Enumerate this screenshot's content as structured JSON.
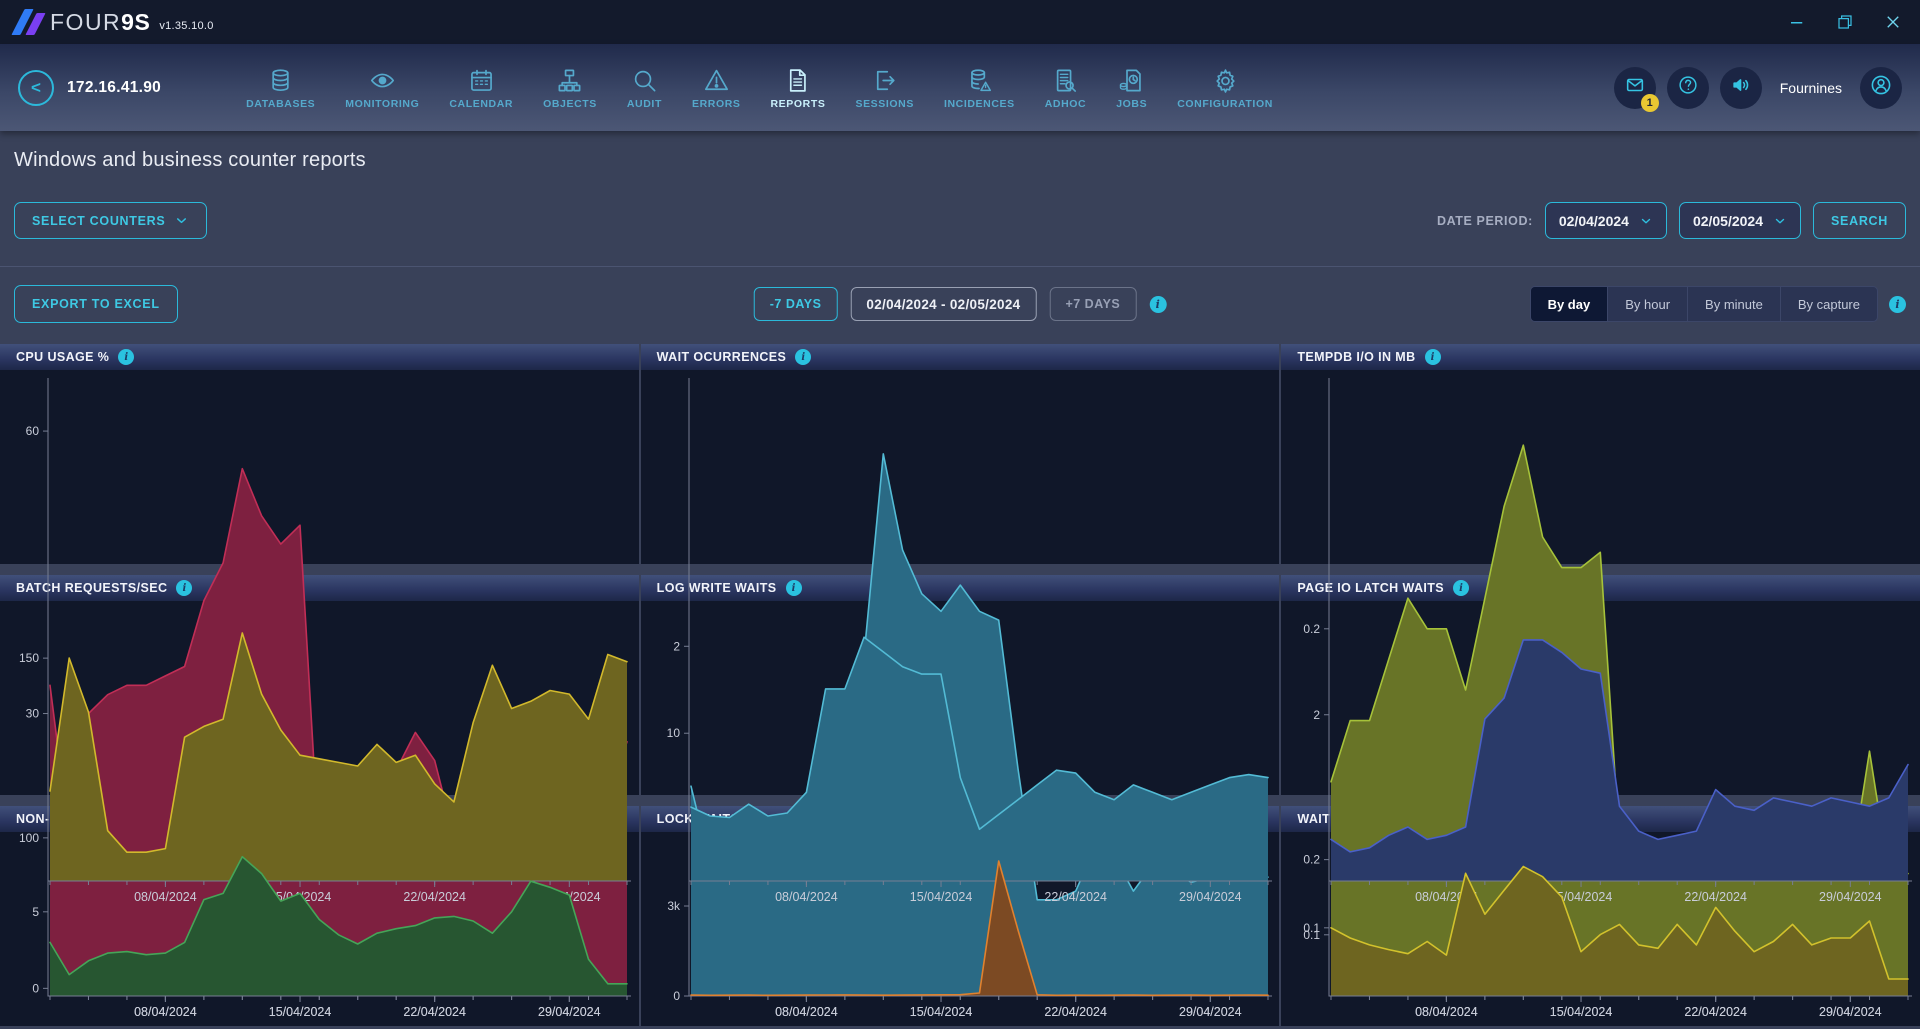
{
  "topbar": {
    "brand_thin": "FOUR",
    "brand_bold": "9S",
    "version": "v1.35.10.0"
  },
  "navbar": {
    "back_glyph": "<",
    "ip": "172.16.41.90",
    "items": [
      {
        "label": "DATABASES",
        "icon": "databases-icon"
      },
      {
        "label": "MONITORING",
        "icon": "monitoring-icon"
      },
      {
        "label": "CALENDAR",
        "icon": "calendar-icon"
      },
      {
        "label": "OBJECTS",
        "icon": "objects-icon"
      },
      {
        "label": "AUDIT",
        "icon": "audit-icon"
      },
      {
        "label": "ERRORS",
        "icon": "errors-icon"
      },
      {
        "label": "REPORTS",
        "icon": "reports-icon"
      },
      {
        "label": "SESSIONS",
        "icon": "sessions-icon"
      },
      {
        "label": "INCIDENCES",
        "icon": "incidences-icon"
      },
      {
        "label": "ADHOC",
        "icon": "adhoc-icon"
      },
      {
        "label": "JOBS",
        "icon": "jobs-icon"
      },
      {
        "label": "CONFIGURATION",
        "icon": "configuration-icon"
      }
    ],
    "active_item": "REPORTS",
    "mail_badge": "1",
    "username": "Fournines"
  },
  "page": {
    "title": "Windows and business counter reports"
  },
  "filters": {
    "select_counters_label": "SELECT COUNTERS",
    "date_period_label": "DATE PERIOD:",
    "date_from": "02/04/2024",
    "date_to": "02/05/2024",
    "search_label": "SEARCH"
  },
  "actions": {
    "export_label": "EXPORT TO EXCEL",
    "minus7_label": "-7 DAYS",
    "range_label": "02/04/2024 - 02/05/2024",
    "plus7_label": "+7 DAYS",
    "granularity_options": [
      "By day",
      "By hour",
      "By minute",
      "By capture"
    ],
    "granularity_active": "By day"
  },
  "colors": {
    "accent_cyan": "#2bb9da",
    "badge_yellow": "#e9c832",
    "panel_bg": "#101729",
    "page_bg": "#394159"
  },
  "chart_data": {
    "type": "area",
    "x_tick_labels": [
      "08/04/2024",
      "15/04/2024",
      "22/04/2024",
      "29/04/2024"
    ],
    "x_tick_indices": [
      6,
      13,
      20,
      27
    ],
    "charts": [
      {
        "title": "CPU USAGE %",
        "line_color": "#c12e56",
        "fill_color": "#7e2040",
        "ylim": [
          0,
          65
        ],
        "yticks": [
          {
            "v": 30,
            "label": "30"
          },
          {
            "v": 60,
            "label": "60"
          }
        ],
        "values": [
          33,
          17,
          30,
          32,
          33,
          33,
          34,
          35,
          42,
          46,
          56,
          51,
          48,
          50,
          15,
          13,
          17,
          21,
          24,
          28,
          25,
          17,
          16,
          17,
          18,
          18,
          20,
          22,
          25,
          21,
          27
        ]
      },
      {
        "title": "WAIT OCURRENCES",
        "line_color": "#53bbd5",
        "fill_color": "#2a6a85",
        "ylim": [
          0,
          3.5
        ],
        "yticks": [
          {
            "v": 2,
            "label": "2"
          }
        ],
        "values": [
          1.2,
          0.75,
          0.9,
          0.95,
          0.95,
          0.9,
          0.9,
          1.0,
          1.75,
          1.95,
          3.1,
          2.55,
          2.3,
          2.2,
          2.35,
          2.2,
          2.15,
          1.3,
          0.55,
          0.55,
          0.6,
          0.85,
          0.8,
          0.6,
          0.75,
          0.72,
          0.65,
          0.68,
          0.66,
          0.7,
          0.68
        ]
      },
      {
        "title": "TEMPDB I/O IN MB",
        "line_color": "#a6c23a",
        "fill_color": "#687427",
        "ylim": [
          0.08,
          0.28
        ],
        "yticks": [
          {
            "v": 0.1,
            "label": "0.1"
          },
          {
            "v": 0.2,
            "label": "0.2"
          }
        ],
        "values": [
          0.15,
          0.17,
          0.17,
          0.19,
          0.21,
          0.2,
          0.2,
          0.18,
          0.21,
          0.24,
          0.26,
          0.23,
          0.22,
          0.22,
          0.225,
          0.13,
          0.12,
          0.12,
          0.12,
          0.125,
          0.12,
          0.12,
          0.13,
          0.125,
          0.12,
          0.13,
          0.13,
          0.12,
          0.16,
          0.12,
          0.12
        ]
      },
      {
        "title": "BATCH REQUESTS/SEC",
        "line_color": "#d2b92c",
        "fill_color": "#6e6520",
        "ylim": [
          88,
          162
        ],
        "yticks": [
          {
            "v": 100,
            "label": "100"
          },
          {
            "v": 150,
            "label": "150"
          }
        ],
        "values": [
          113,
          150,
          135,
          102,
          96,
          96,
          97,
          128,
          131,
          133,
          157,
          140,
          130,
          123,
          122,
          121,
          120,
          126,
          121,
          123,
          115,
          110,
          132,
          148,
          136,
          138,
          141,
          140,
          133,
          151,
          149
        ]
      },
      {
        "title": "LOG WRITE WAITS",
        "line_color": "#53bbd5",
        "fill_color": "#2a6a85",
        "ylim": [
          0,
          18
        ],
        "yticks": [
          {
            "v": 10,
            "label": "10"
          }
        ],
        "values": [
          5,
          4.4,
          4.3,
          5.2,
          4.4,
          4.6,
          6,
          13,
          13,
          16.5,
          15.5,
          14.5,
          14,
          14,
          7,
          3.5,
          4.5,
          5.5,
          6.5,
          7.5,
          7.3,
          6,
          5.5,
          6.5,
          6,
          5.5,
          6,
          6.5,
          7,
          7.2,
          7
        ]
      },
      {
        "title": "PAGE IO LATCH WAITS",
        "line_color": "#4a60c8",
        "fill_color": "#2a3a69",
        "ylim": [
          0,
          3.2
        ],
        "yticks": [
          {
            "v": 2,
            "label": "2"
          }
        ],
        "values": [
          0.5,
          0.35,
          0.4,
          0.55,
          0.65,
          0.5,
          0.55,
          0.65,
          1.95,
          2.2,
          2.9,
          2.9,
          2.75,
          2.55,
          2.5,
          0.9,
          0.6,
          0.5,
          0.55,
          0.6,
          1.1,
          0.9,
          0.85,
          1.0,
          0.95,
          0.9,
          1.0,
          0.95,
          0.9,
          1.0,
          1.4
        ]
      },
      {
        "title": "NON-PAGE LATCH WAITS",
        "line_color": "#45a558",
        "fill_color": "#275631",
        "ylim": [
          -0.5,
          9.3
        ],
        "yticks": [
          {
            "v": 0,
            "label": "0"
          },
          {
            "v": 5,
            "label": "5"
          }
        ],
        "values": [
          3,
          0.9,
          1.8,
          2.3,
          2.4,
          2.2,
          2.3,
          3,
          5.8,
          6.2,
          8.6,
          7.5,
          5.7,
          6.2,
          4.5,
          3.5,
          2.9,
          3.6,
          3.9,
          4.1,
          4.6,
          4.7,
          4.4,
          3.6,
          5,
          7,
          6.6,
          6.1,
          1.9,
          0.3,
          0.3
        ]
      },
      {
        "title": "LOCK WAITS",
        "line_color": "#e0812e",
        "fill_color": "#7c4a23",
        "ylim": [
          0,
          5000
        ],
        "yticks": [
          {
            "v": 0,
            "label": "0"
          },
          {
            "v": 3000,
            "label": "3k"
          }
        ],
        "values": [
          30,
          25,
          28,
          30,
          25,
          28,
          30,
          32,
          35,
          30,
          28,
          30,
          35,
          40,
          45,
          100,
          4500,
          2200,
          40,
          25,
          28,
          25,
          28,
          30,
          25,
          28,
          30,
          25,
          28,
          30,
          28
        ]
      },
      {
        "title": "WAIT FOR THE WORKER",
        "line_color": "#d2c22c",
        "fill_color": "#6e6520",
        "ylim": [
          0,
          0.22
        ],
        "yticks": [
          {
            "v": 0.1,
            "label": "0.1"
          },
          {
            "v": 0.2,
            "label": "0.2"
          }
        ],
        "values": [
          0.1,
          0.085,
          0.075,
          0.068,
          0.062,
          0.08,
          0.06,
          0.18,
          0.12,
          0.155,
          0.19,
          0.175,
          0.145,
          0.065,
          0.09,
          0.105,
          0.075,
          0.07,
          0.105,
          0.075,
          0.13,
          0.095,
          0.065,
          0.08,
          0.105,
          0.075,
          0.085,
          0.085,
          0.11,
          0.025,
          0.025
        ]
      }
    ]
  }
}
